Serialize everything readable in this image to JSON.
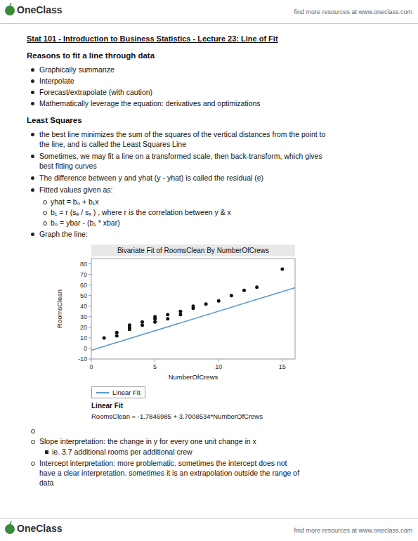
{
  "brand": "OneClass",
  "logo_color": "#3a8a3a",
  "header_right_text": "find more resources at www.oneclass.com",
  "footer_right_text": "find more resources at www.oneclass.com",
  "title": "Stat 101 - Introduction to Business Statistics - Lecture 23: Line of Fit",
  "section1_header": "Reasons to fit a line through data",
  "section1_bullets": [
    "Graphically summarize",
    "Interpolate",
    "Forecast/extrapolate (with caution)",
    "Mathematically leverage the equation: derivatives and optimizations"
  ],
  "section2_header": "Least Squares",
  "section2_bullets": [
    "the best line minimizes the sum of the squares of the vertical distances from the point to\nthe line, and is called the Least Squares Line",
    "Sometimes, we may fit a line on a transformed scale, then back-transform, which gives\nbest fitting curves",
    "The difference between y and yhat (y - yhat) is called the residual (e)",
    "Fitted values given as:"
  ],
  "sub_bullets": [
    "yhat = b₀ + b₁x",
    "b₁ = r (sₑ / sₓ ) , where r is the correlation between y & x",
    "b₀ = ybar - (b₁ * xbar)"
  ],
  "last_bullet": "Graph the line:",
  "slope_bullet": "Slope interpretation: the change in y for every one unit change in x",
  "slope_sub": "ie. 3.7 additional rooms per additional crew",
  "intercept_bullet": "Intercept interpretation: more problematic. sometimes the intercept does not\nhave a clear interpretation. sometimes it is an extrapolation outside the range of\ndata",
  "chart_data": {
    "type": "scatter",
    "title": "Bivariate Fit of RoomsClean By NumberOfCrews",
    "x_label": "NumberOfCrews",
    "y_label": "RoomsClean",
    "xlim": [
      0,
      16
    ],
    "ylim": [
      -10,
      85
    ],
    "xticks": [
      0,
      5,
      10,
      15
    ],
    "yticks": [
      -10,
      0,
      10,
      20,
      30,
      40,
      50,
      60,
      70,
      80
    ],
    "grid": false,
    "legend": "below",
    "series": [
      {
        "type": "scatter",
        "color": "#111111",
        "x": [
          1,
          2,
          2,
          3,
          3,
          3,
          4,
          4,
          5,
          5,
          5,
          6,
          6,
          7,
          7,
          8,
          8,
          9,
          10,
          11,
          12,
          13,
          15
        ],
        "values": [
          10,
          12,
          15,
          18,
          20,
          22,
          22,
          25,
          25,
          28,
          30,
          28,
          32,
          32,
          35,
          38,
          40,
          42,
          45,
          50,
          55,
          58,
          75
        ]
      },
      {
        "name": "Linear Fit",
        "type": "line",
        "color": "#5599cc",
        "x": [
          0,
          16
        ],
        "values": [
          -1.7846985,
          57.4289559
        ]
      }
    ],
    "annotations": [
      "Linear Fit",
      "RoomsClean = -1.7846985 + 3.7008534*NumberOfCrews"
    ]
  }
}
